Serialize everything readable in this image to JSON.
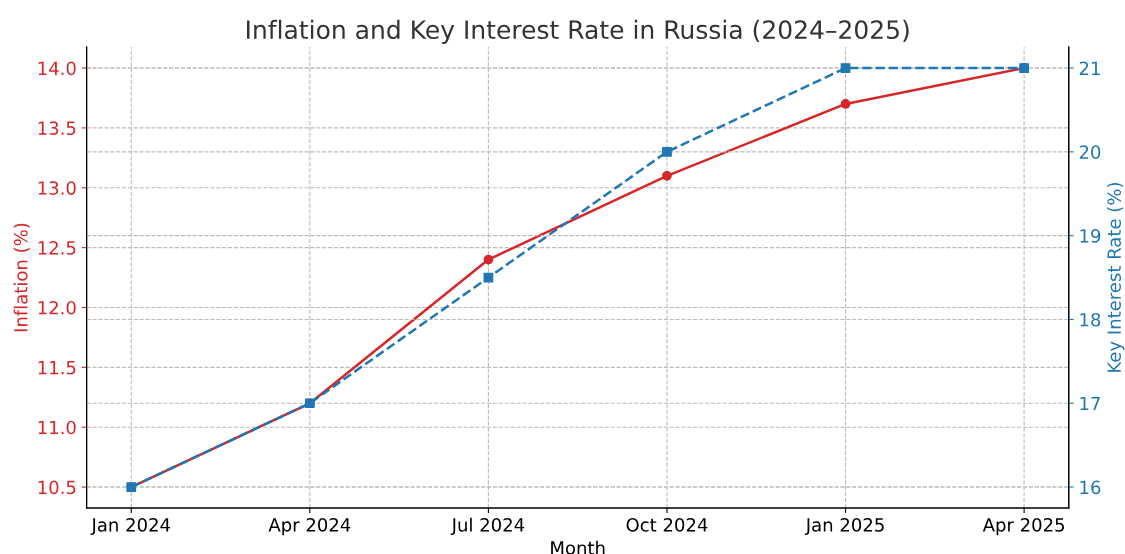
{
  "chart_data": {
    "type": "line",
    "title": "Inflation and Key Interest Rate in Russia (2024–2025)",
    "xlabel": "Month",
    "ylabel": "Inflation (%)",
    "y2label": "Key Interest Rate (%)",
    "categories": [
      "Jan 2024",
      "Apr 2024",
      "Jul 2024",
      "Oct 2024",
      "Jan 2025",
      "Apr 2025"
    ],
    "series": [
      {
        "color": "#d62728",
        "values": [
          10.5,
          11.2,
          12.4,
          13.1,
          13.7,
          14.0
        ],
        "marker": "circle",
        "line_style": "solid"
      },
      {
        "color": "#1f77b4",
        "values": [
          16,
          17,
          18.5,
          20,
          21,
          21
        ],
        "marker": "square",
        "line_style": "dashed",
        "axis": "y2"
      }
    ],
    "ylim": [
      10.325,
      14.175
    ],
    "yticks": [
      10.5,
      {
        "value": 11,
        "label": "11.0"
      },
      11.5,
      {
        "value": 12,
        "label": "12.0"
      },
      12.5,
      {
        "value": 13,
        "label": "13.0"
      },
      13.5,
      {
        "value": 14,
        "label": "14.0"
      }
    ],
    "y2lim": [
      15.75,
      21.25
    ],
    "y2ticks": [
      16,
      17,
      18,
      19,
      20,
      21
    ],
    "grid": true,
    "legend": false
  }
}
